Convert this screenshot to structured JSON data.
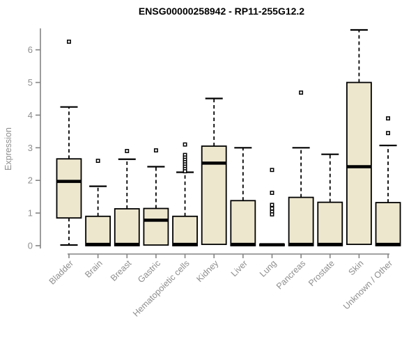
{
  "chart_data": {
    "type": "boxplot",
    "title": "ENSG00000258942 - RP11-255G12.2",
    "xlabel": "",
    "ylabel": "Expression",
    "ylim": [
      0,
      6.7
    ],
    "yticks": [
      0,
      1,
      2,
      3,
      4,
      5,
      6
    ],
    "grid": false,
    "legend": false,
    "categories": [
      "Bladder",
      "Brain",
      "Breast",
      "Gastric",
      "Hematopoietic cells",
      "Kidney",
      "Liver",
      "Lung",
      "Pancreas",
      "Prostate",
      "Skin",
      "Unknown / Other"
    ],
    "boxes": [
      {
        "category": "Bladder",
        "whisker_low": 0.02,
        "q1": 0.85,
        "median": 1.97,
        "q3": 2.66,
        "whisker_high": 4.25,
        "outliers": [
          6.25
        ]
      },
      {
        "category": "Brain",
        "whisker_low": 0.0,
        "q1": 0.0,
        "median": 0.04,
        "q3": 0.9,
        "whisker_high": 1.82,
        "outliers": [
          2.6
        ]
      },
      {
        "category": "Breast",
        "whisker_low": 0.0,
        "q1": 0.0,
        "median": 0.04,
        "q3": 1.13,
        "whisker_high": 2.65,
        "outliers": [
          2.9
        ]
      },
      {
        "category": "Gastric",
        "whisker_low": 0.0,
        "q1": 0.02,
        "median": 0.78,
        "q3": 1.14,
        "whisker_high": 2.42,
        "outliers": [
          2.92
        ]
      },
      {
        "category": "Hematopoietic cells",
        "whisker_low": 0.0,
        "q1": 0.0,
        "median": 0.04,
        "q3": 0.9,
        "whisker_high": 2.25,
        "outliers": [
          3.1,
          2.78,
          2.7,
          2.63,
          2.56,
          2.49,
          2.42,
          2.35,
          2.28
        ]
      },
      {
        "category": "Kidney",
        "whisker_low": 0.02,
        "q1": 0.04,
        "median": 2.53,
        "q3": 3.05,
        "whisker_high": 4.51,
        "outliers": []
      },
      {
        "category": "Liver",
        "whisker_low": 0.0,
        "q1": 0.0,
        "median": 0.04,
        "q3": 1.38,
        "whisker_high": 3.0,
        "outliers": []
      },
      {
        "category": "Lung",
        "whisker_low": 0.0,
        "q1": 0.0,
        "median": 0.03,
        "q3": 0.05,
        "whisker_high": 0.05,
        "outliers": [
          2.32,
          1.62,
          1.25,
          1.14,
          1.04,
          0.96
        ]
      },
      {
        "category": "Pancreas",
        "whisker_low": 0.0,
        "q1": 0.0,
        "median": 0.04,
        "q3": 1.48,
        "whisker_high": 3.0,
        "outliers": [
          4.69
        ]
      },
      {
        "category": "Prostate",
        "whisker_low": 0.0,
        "q1": 0.0,
        "median": 0.04,
        "q3": 1.33,
        "whisker_high": 2.8,
        "outliers": []
      },
      {
        "category": "Skin",
        "whisker_low": 0.02,
        "q1": 0.04,
        "median": 2.42,
        "q3": 5.0,
        "whisker_high": 6.61,
        "outliers": []
      },
      {
        "category": "Unknown / Other",
        "whisker_low": 0.0,
        "q1": 0.0,
        "median": 0.04,
        "q3": 1.32,
        "whisker_high": 3.07,
        "outliers": [
          3.9,
          3.45
        ]
      }
    ],
    "colors": {
      "box_fill": "#EDE7CE",
      "box_border": "#000000",
      "median": "#000000",
      "whisker": "#000000",
      "outlier": "#000000",
      "axis": "#848484",
      "tick_label": "#8E8E8E",
      "title": "#000000",
      "background": "#FFFFFF"
    }
  }
}
